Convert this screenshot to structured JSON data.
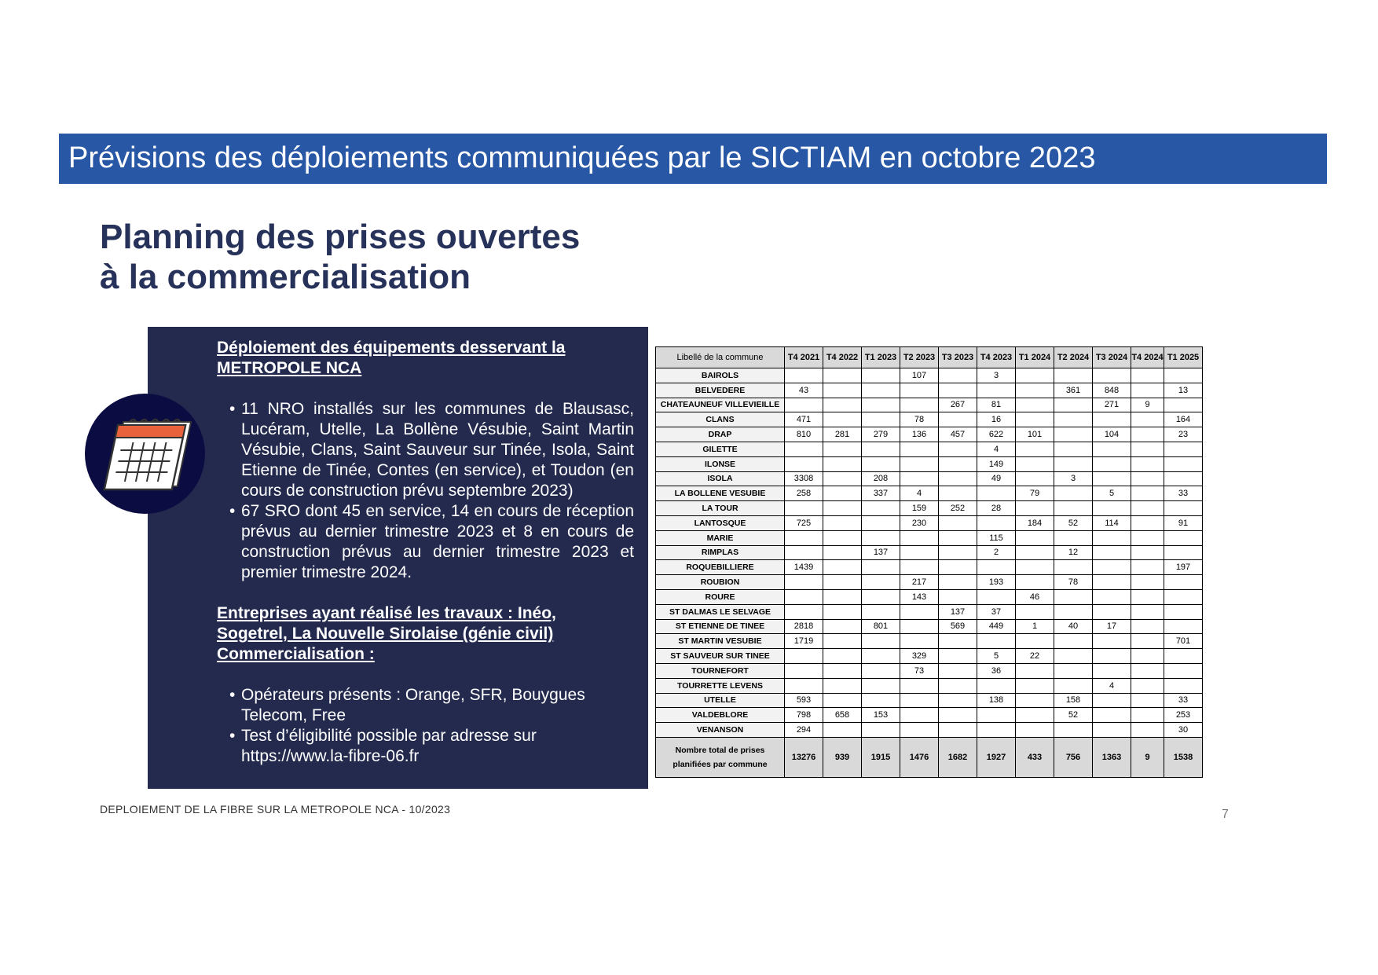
{
  "banner": {
    "title": "Prévisions des déploiements communiquées par le SICTIAM en octobre 2023"
  },
  "heading": {
    "line1": "Planning des prises ouvertes",
    "line2": "à la commercialisation"
  },
  "panel": {
    "section1_title_line1": "Déploiement des équipements desservant la",
    "section1_title_line2": "METROPOLE NCA",
    "bullets1": [
      "11 NRO installés sur les communes de Blausasc, Lucéram, Utelle, La Bollène Vésubie, Saint Martin Vésubie, Clans, Saint Sauveur sur Tinée, Isola, Saint Etienne de Tinée, Contes (en service), et Toudon (en cours de construction prévu septembre 2023)",
      "67 SRO dont 45 en service, 14 en cours de réception prévus au dernier trimestre 2023 et 8 en cours de construction prévus au dernier trimestre 2023 et premier trimestre 2024."
    ],
    "section2_title_line1": "Entreprises ayant réalisé les travaux : Inéo,",
    "section2_title_line2": "Sogetrel, La Nouvelle Sirolaise (génie civil)",
    "section2_title_line3": "Commercialisation :",
    "bullets2": [
      "Opérateurs présents : Orange, SFR, Bouygues Telecom, Free",
      "Test d’éligibilité possible par adresse sur https://www.la-fibre-06.fr"
    ]
  },
  "footer": {
    "text": "DEPLOIEMENT DE LA FIBRE SUR LA METROPOLE NCA - 10/2023",
    "page": "7"
  },
  "table": {
    "headers": [
      "Libellé de la commune",
      "T4 2021",
      "T4 2022",
      "T1 2023",
      "T2 2023",
      "T3 2023",
      "T4 2023",
      "T1 2024",
      "T2 2024",
      "T3 2024",
      "T4 2024",
      "T1 2025"
    ],
    "rows": [
      [
        "BAIROLS",
        "",
        "",
        "",
        "107",
        "",
        "3",
        "",
        "",
        "",
        "",
        ""
      ],
      [
        "BELVEDERE",
        "43",
        "",
        "",
        "",
        "",
        "",
        "",
        "361",
        "848",
        "",
        "13"
      ],
      [
        "CHATEAUNEUF VILLEVIEILLE",
        "",
        "",
        "",
        "",
        "267",
        "81",
        "",
        "",
        "271",
        "9",
        ""
      ],
      [
        "CLANS",
        "471",
        "",
        "",
        "78",
        "",
        "16",
        "",
        "",
        "",
        "",
        "164"
      ],
      [
        "DRAP",
        "810",
        "281",
        "279",
        "136",
        "457",
        "622",
        "101",
        "",
        "104",
        "",
        "23"
      ],
      [
        "GILETTE",
        "",
        "",
        "",
        "",
        "",
        "4",
        "",
        "",
        "",
        "",
        ""
      ],
      [
        "ILONSE",
        "",
        "",
        "",
        "",
        "",
        "149",
        "",
        "",
        "",
        "",
        ""
      ],
      [
        "ISOLA",
        "3308",
        "",
        "208",
        "",
        "",
        "49",
        "",
        "3",
        "",
        "",
        ""
      ],
      [
        "LA BOLLENE VESUBIE",
        "258",
        "",
        "337",
        "4",
        "",
        "",
        "79",
        "",
        "5",
        "",
        "33"
      ],
      [
        "LA TOUR",
        "",
        "",
        "",
        "159",
        "252",
        "28",
        "",
        "",
        "",
        "",
        ""
      ],
      [
        "LANTOSQUE",
        "725",
        "",
        "",
        "230",
        "",
        "",
        "184",
        "52",
        "114",
        "",
        "91"
      ],
      [
        "MARIE",
        "",
        "",
        "",
        "",
        "",
        "115",
        "",
        "",
        "",
        "",
        ""
      ],
      [
        "RIMPLAS",
        "",
        "",
        "137",
        "",
        "",
        "2",
        "",
        "12",
        "",
        "",
        ""
      ],
      [
        "ROQUEBILLIERE",
        "1439",
        "",
        "",
        "",
        "",
        "",
        "",
        "",
        "",
        "",
        "197"
      ],
      [
        "ROUBION",
        "",
        "",
        "",
        "217",
        "",
        "193",
        "",
        "78",
        "",
        "",
        ""
      ],
      [
        "ROURE",
        "",
        "",
        "",
        "143",
        "",
        "",
        "46",
        "",
        "",
        "",
        ""
      ],
      [
        "ST DALMAS LE SELVAGE",
        "",
        "",
        "",
        "",
        "137",
        "37",
        "",
        "",
        "",
        "",
        ""
      ],
      [
        "ST ETIENNE DE TINEE",
        "2818",
        "",
        "801",
        "",
        "569",
        "449",
        "1",
        "40",
        "17",
        "",
        ""
      ],
      [
        "ST MARTIN VESUBIE",
        "1719",
        "",
        "",
        "",
        "",
        "",
        "",
        "",
        "",
        "",
        "701"
      ],
      [
        "ST SAUVEUR SUR TINEE",
        "",
        "",
        "",
        "329",
        "",
        "5",
        "22",
        "",
        "",
        "",
        ""
      ],
      [
        "TOURNEFORT",
        "",
        "",
        "",
        "73",
        "",
        "36",
        "",
        "",
        "",
        "",
        ""
      ],
      [
        "TOURRETTE LEVENS",
        "",
        "",
        "",
        "",
        "",
        "",
        "",
        "",
        "4",
        "",
        ""
      ],
      [
        "UTELLE",
        "593",
        "",
        "",
        "",
        "",
        "138",
        "",
        "158",
        "",
        "",
        "33"
      ],
      [
        "VALDEBLORE",
        "798",
        "658",
        "153",
        "",
        "",
        "",
        "",
        "52",
        "",
        "",
        "253"
      ],
      [
        "VENANSON",
        "294",
        "",
        "",
        "",
        "",
        "",
        "",
        "",
        "",
        "",
        "30"
      ]
    ],
    "total": [
      "Nombre total de prises planifiées par commune",
      "13276",
      "939",
      "1915",
      "1476",
      "1682",
      "1927",
      "433",
      "756",
      "1363",
      "9",
      "1538"
    ]
  }
}
